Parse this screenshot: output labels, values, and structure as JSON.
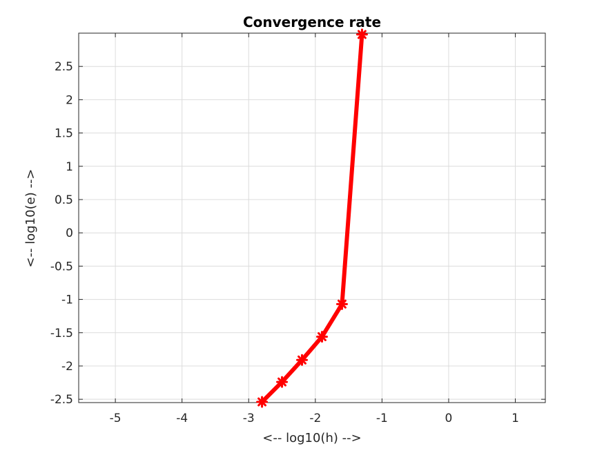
{
  "chart_data": {
    "type": "line",
    "title": "Convergence rate",
    "xlabel": "<-- log10(h) -->",
    "ylabel": "<-- log10(e) -->",
    "xlim": [
      -5.55,
      1.45
    ],
    "ylim": [
      -2.55,
      3.0
    ],
    "xticks": [
      -5,
      -4,
      -3,
      -2,
      -1,
      0,
      1
    ],
    "yticks": [
      -2.5,
      -2,
      -1.5,
      -1,
      -0.5,
      0,
      0.5,
      1,
      1.5,
      2,
      2.5
    ],
    "xtick_labels": [
      "-5",
      "-4",
      "-3",
      "-2",
      "-1",
      "0",
      "1"
    ],
    "ytick_labels": [
      "-2.5",
      "-2",
      "-1.5",
      "-1",
      "-0.5",
      "0",
      "0.5",
      "1",
      "1.5",
      "2",
      "2.5"
    ],
    "grid": true,
    "series": [
      {
        "color": "#ff0000",
        "marker": "asterisk",
        "x": [
          -1.3,
          -1.6,
          -1.9,
          -2.2,
          -2.5,
          -2.8
        ],
        "y": [
          2.98,
          -1.07,
          -1.56,
          -1.91,
          -2.24,
          -2.54
        ]
      }
    ]
  }
}
